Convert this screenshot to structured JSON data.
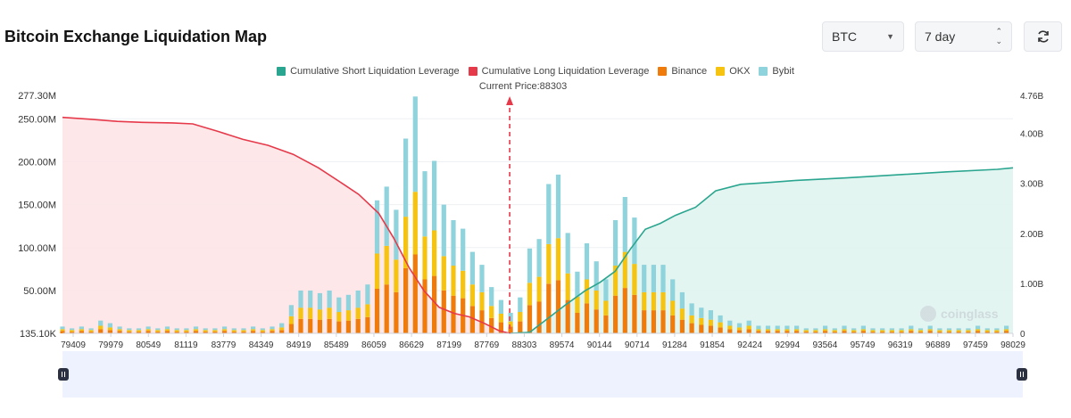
{
  "page": {
    "title": "Bitcoin Exchange Liquidation Map",
    "coin_select": "BTC",
    "range_select": "7 day",
    "refresh_icon": "refresh-icon",
    "watermark": "coinglass"
  },
  "colors": {
    "short": "#2aa58f",
    "long": "#e6394a",
    "binance": "#f07b0a",
    "okx": "#f5c310",
    "bybit": "#8fd3dc"
  },
  "chart_data": {
    "type": "bar",
    "title": "Bitcoin Exchange Liquidation Map",
    "current_price_label": "Current Price:88303",
    "current_price": 88303,
    "legend": [
      {
        "key": "short",
        "label": "Cumulative Short Liquidation Leverage"
      },
      {
        "key": "long",
        "label": "Cumulative Long Liquidation Leverage"
      },
      {
        "key": "binance",
        "label": "Binance"
      },
      {
        "key": "okx",
        "label": "OKX"
      },
      {
        "key": "bybit",
        "label": "Bybit"
      }
    ],
    "y_left": {
      "min": 135100,
      "max": 277300000,
      "ticks": [
        {
          "v": 135100,
          "label": "135.10K"
        },
        {
          "v": 50000000,
          "label": "50.00M"
        },
        {
          "v": 100000000,
          "label": "100.00M"
        },
        {
          "v": 150000000,
          "label": "150.00M"
        },
        {
          "v": 200000000,
          "label": "200.00M"
        },
        {
          "v": 250000000,
          "label": "250.00M"
        },
        {
          "v": 277300000,
          "label": "277.30M"
        }
      ]
    },
    "y_right": {
      "min": 0,
      "max": 4760000000,
      "ticks": [
        {
          "v": 0,
          "label": "0"
        },
        {
          "v": 1000000000,
          "label": "1.00B"
        },
        {
          "v": 2000000000,
          "label": "2.00B"
        },
        {
          "v": 3000000000,
          "label": "3.00B"
        },
        {
          "v": 4000000000,
          "label": "4.00B"
        },
        {
          "v": 4760000000,
          "label": "4.76B"
        }
      ]
    },
    "x_range": [
      79409,
      98313
    ],
    "x_ticks": [
      "79409",
      "79979",
      "80549",
      "81119",
      "83779",
      "84349",
      "84919",
      "85489",
      "86059",
      "86629",
      "87199",
      "87769",
      "88303",
      "89574",
      "90144",
      "90714",
      "91284",
      "91854",
      "92424",
      "92994",
      "93564",
      "95749",
      "96319",
      "96889",
      "97459",
      "98029"
    ],
    "bars": {
      "x": [
        79409,
        79598,
        79788,
        79978,
        80167,
        80357,
        80546,
        80736,
        80926,
        81115,
        81305,
        81495,
        81684,
        81874,
        82063,
        82253,
        82443,
        82632,
        82822,
        83012,
        83201,
        83391,
        83580,
        83770,
        83960,
        84149,
        84339,
        84529,
        84718,
        84908,
        85097,
        85287,
        85477,
        85666,
        85856,
        86046,
        86235,
        86425,
        86615,
        86804,
        86994,
        87183,
        87373,
        87563,
        87752,
        87942,
        88132,
        88321,
        88511,
        88701,
        88890,
        89080,
        89269,
        89459,
        89649,
        89838,
        90028,
        90218,
        90407,
        90597,
        90786,
        90976,
        91166,
        91355,
        91545,
        91735,
        91924,
        92114,
        92303,
        92493,
        92683,
        92872,
        93062,
        93252,
        93441,
        93631,
        93821,
        94010,
        94200,
        94389,
        94579,
        94769,
        94958,
        95148,
        95338,
        95527,
        95717,
        95906,
        96096,
        96286,
        96475,
        96665,
        96855,
        97044,
        97234,
        97423,
        97613,
        97803,
        97992,
        98182
      ],
      "binance": [
        3,
        2,
        3,
        2,
        5,
        4,
        3,
        2,
        2,
        3,
        2,
        3,
        2,
        2,
        3,
        2,
        2,
        3,
        2,
        2,
        3,
        2,
        3,
        4,
        11,
        17,
        17,
        16,
        17,
        14,
        15,
        17,
        19,
        52,
        57,
        48,
        76,
        92,
        63,
        67,
        50,
        44,
        41,
        32,
        27,
        18,
        13,
        8,
        14,
        33,
        37,
        58,
        62,
        39,
        24,
        35,
        28,
        21,
        44,
        53,
        45,
        27,
        27,
        27,
        21,
        16,
        12,
        10,
        9,
        7,
        5,
        4,
        5,
        3,
        3,
        3,
        3,
        3,
        2,
        2,
        3,
        2,
        3,
        2,
        3,
        2,
        2,
        2,
        2,
        3,
        2,
        3,
        2,
        2,
        2,
        2,
        3,
        2,
        2,
        3
      ],
      "okx": [
        2,
        2,
        2,
        2,
        4,
        3,
        2,
        2,
        2,
        2,
        2,
        2,
        2,
        2,
        2,
        2,
        2,
        2,
        2,
        2,
        2,
        2,
        2,
        3,
        9,
        13,
        13,
        12,
        13,
        11,
        12,
        13,
        15,
        41,
        45,
        38,
        60,
        73,
        50,
        53,
        40,
        35,
        32,
        25,
        21,
        14,
        10,
        6,
        11,
        26,
        29,
        46,
        49,
        31,
        19,
        28,
        22,
        17,
        35,
        42,
        36,
        21,
        21,
        21,
        17,
        13,
        9,
        8,
        7,
        6,
        4,
        3,
        4,
        2,
        2,
        2,
        2,
        2,
        2,
        2,
        2,
        2,
        2,
        2,
        2,
        2,
        2,
        2,
        2,
        2,
        2,
        2,
        2,
        2,
        2,
        2,
        2,
        2,
        2,
        2
      ],
      "bybit": [
        3,
        2,
        3,
        2,
        6,
        5,
        3,
        2,
        2,
        3,
        2,
        3,
        2,
        2,
        3,
        2,
        2,
        3,
        2,
        2,
        3,
        2,
        3,
        5,
        13,
        20,
        20,
        19,
        20,
        17,
        18,
        20,
        23,
        62,
        69,
        58,
        91,
        111,
        76,
        81,
        60,
        53,
        49,
        38,
        32,
        22,
        16,
        10,
        17,
        40,
        44,
        70,
        74,
        47,
        29,
        42,
        34,
        25,
        53,
        64,
        54,
        32,
        32,
        32,
        25,
        19,
        14,
        12,
        11,
        8,
        6,
        5,
        6,
        4,
        4,
        4,
        4,
        4,
        2,
        2,
        4,
        2,
        4,
        2,
        4,
        2,
        2,
        2,
        2,
        4,
        2,
        4,
        2,
        2,
        2,
        2,
        4,
        2,
        2,
        4
      ]
    },
    "long_cumulative": {
      "x": [
        79409,
        80000,
        80500,
        81000,
        81600,
        82000,
        82500,
        83000,
        83500,
        84000,
        84500,
        85000,
        85300,
        85700,
        86000,
        86300,
        86600,
        86900,
        87200,
        87500,
        87800,
        88100,
        88303
      ],
      "y": [
        4.32,
        4.28,
        4.24,
        4.22,
        4.21,
        4.19,
        4.04,
        3.88,
        3.76,
        3.58,
        3.31,
        2.98,
        2.78,
        2.4,
        1.9,
        1.32,
        0.85,
        0.52,
        0.4,
        0.33,
        0.2,
        0.05,
        0.0
      ]
    },
    "short_cumulative": {
      "x": [
        88303,
        88700,
        89000,
        89400,
        89800,
        90100,
        90400,
        90700,
        91000,
        91300,
        91600,
        92000,
        92400,
        92900,
        93500,
        94000,
        95000,
        96000,
        97000,
        98000,
        98313
      ],
      "y": [
        0.0,
        0.02,
        0.25,
        0.56,
        0.85,
        1.02,
        1.24,
        1.68,
        2.08,
        2.2,
        2.36,
        2.52,
        2.85,
        2.98,
        3.02,
        3.06,
        3.11,
        3.17,
        3.23,
        3.28,
        3.31
      ]
    }
  }
}
